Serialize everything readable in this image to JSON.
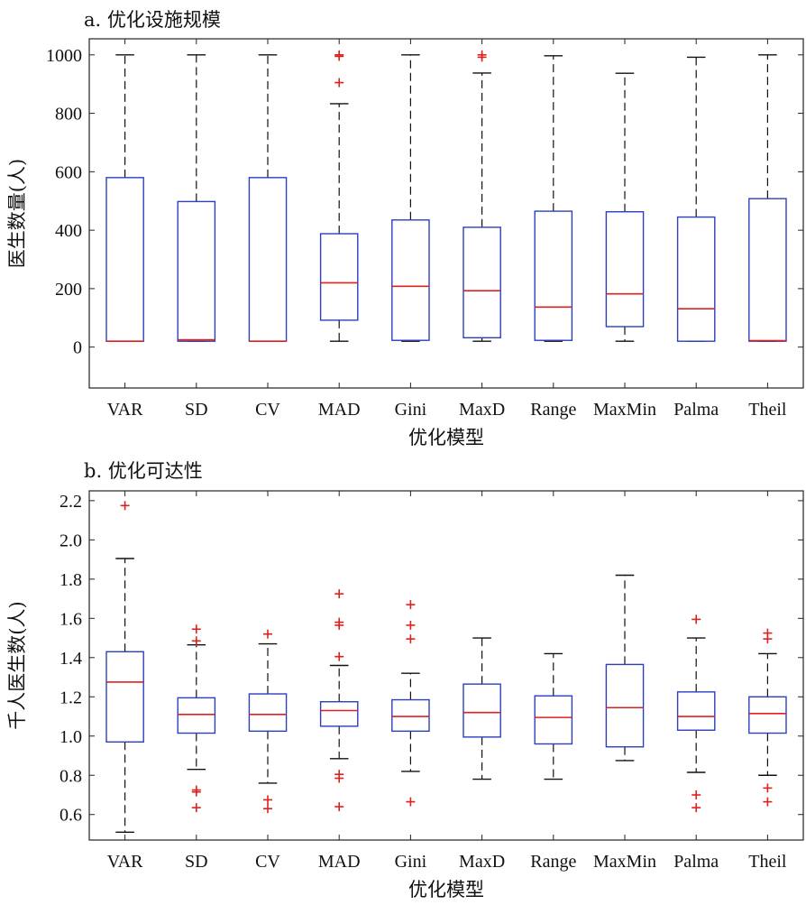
{
  "chart_data": [
    {
      "type": "box",
      "title": "a. 优化设施规模",
      "xlabel": "优化模型",
      "ylabel": "医生数量(人)",
      "ylim": [
        -140,
        1055
      ],
      "yticks": [
        0,
        200,
        400,
        600,
        800,
        1000
      ],
      "ytick_labels": [
        "0",
        "200",
        "400",
        "600",
        "800",
        "1000"
      ],
      "categories": [
        "VAR",
        "SD",
        "CV",
        "MAD",
        "Gini",
        "MaxD",
        "Range",
        "MaxMin",
        "Palma",
        "Theil"
      ],
      "boxes": [
        {
          "category": "VAR",
          "whisker_low": 20,
          "q1": 20,
          "median": 20,
          "q3": 580,
          "whisker_high": 1000,
          "outliers": []
        },
        {
          "category": "SD",
          "whisker_low": 20,
          "q1": 20,
          "median": 25,
          "q3": 498,
          "whisker_high": 1000,
          "outliers": []
        },
        {
          "category": "CV",
          "whisker_low": 20,
          "q1": 20,
          "median": 20,
          "q3": 580,
          "whisker_high": 1000,
          "outliers": []
        },
        {
          "category": "MAD",
          "whisker_low": 20,
          "q1": 92,
          "median": 220,
          "q3": 388,
          "whisker_high": 833,
          "outliers": [
            905,
            995,
            1000
          ]
        },
        {
          "category": "Gini",
          "whisker_low": 20,
          "q1": 23,
          "median": 208,
          "q3": 435,
          "whisker_high": 1000,
          "outliers": []
        },
        {
          "category": "MaxD",
          "whisker_low": 20,
          "q1": 32,
          "median": 193,
          "q3": 410,
          "whisker_high": 938,
          "outliers": [
            992,
            1000
          ]
        },
        {
          "category": "Range",
          "whisker_low": 20,
          "q1": 23,
          "median": 137,
          "q3": 465,
          "whisker_high": 997,
          "outliers": []
        },
        {
          "category": "MaxMin",
          "whisker_low": 20,
          "q1": 70,
          "median": 182,
          "q3": 463,
          "whisker_high": 937,
          "outliers": []
        },
        {
          "category": "Palma",
          "whisker_low": 20,
          "q1": 20,
          "median": 131,
          "q3": 445,
          "whisker_high": 992,
          "outliers": []
        },
        {
          "category": "Theil",
          "whisker_low": 20,
          "q1": 20,
          "median": 22,
          "q3": 508,
          "whisker_high": 1000,
          "outliers": []
        }
      ],
      "colors": {
        "box": "#2b3fc0",
        "median": "#e0201e",
        "whisker": "#111111",
        "outlier": "#e0201e"
      },
      "grid": false
    },
    {
      "type": "box",
      "title": "b. 优化可达性",
      "xlabel": "优化模型",
      "ylabel": "千人医生数(人)",
      "ylim": [
        0.47,
        2.25
      ],
      "yticks": [
        0.6,
        0.8,
        1.0,
        1.2,
        1.4,
        1.6,
        1.8,
        2.0,
        2.2
      ],
      "ytick_labels": [
        "0.6",
        "0.8",
        "1.0",
        "1.2",
        "1.4",
        "1.6",
        "1.8",
        "2.0",
        "2.2"
      ],
      "categories": [
        "VAR",
        "SD",
        "CV",
        "MAD",
        "Gini",
        "MaxD",
        "Range",
        "MaxMin",
        "Palma",
        "Theil"
      ],
      "boxes": [
        {
          "category": "VAR",
          "whisker_low": 0.51,
          "q1": 0.97,
          "median": 1.275,
          "q3": 1.43,
          "whisker_high": 1.905,
          "outliers": [
            2.175
          ]
        },
        {
          "category": "SD",
          "whisker_low": 0.83,
          "q1": 1.015,
          "median": 1.11,
          "q3": 1.195,
          "whisker_high": 1.465,
          "outliers": [
            0.635,
            0.715,
            0.725,
            1.485,
            1.545
          ]
        },
        {
          "category": "CV",
          "whisker_low": 0.76,
          "q1": 1.025,
          "median": 1.11,
          "q3": 1.215,
          "whisker_high": 1.47,
          "outliers": [
            0.63,
            0.675,
            1.52
          ]
        },
        {
          "category": "MAD",
          "whisker_low": 0.885,
          "q1": 1.05,
          "median": 1.13,
          "q3": 1.175,
          "whisker_high": 1.36,
          "outliers": [
            0.64,
            0.785,
            0.805,
            1.405,
            1.565,
            1.58,
            1.725
          ]
        },
        {
          "category": "Gini",
          "whisker_low": 0.82,
          "q1": 1.025,
          "median": 1.1,
          "q3": 1.185,
          "whisker_high": 1.32,
          "outliers": [
            0.665,
            1.495,
            1.565,
            1.67
          ]
        },
        {
          "category": "MaxD",
          "whisker_low": 0.78,
          "q1": 0.995,
          "median": 1.12,
          "q3": 1.265,
          "whisker_high": 1.5,
          "outliers": []
        },
        {
          "category": "Range",
          "whisker_low": 0.78,
          "q1": 0.96,
          "median": 1.095,
          "q3": 1.205,
          "whisker_high": 1.42,
          "outliers": []
        },
        {
          "category": "MaxMin",
          "whisker_low": 0.875,
          "q1": 0.945,
          "median": 1.145,
          "q3": 1.365,
          "whisker_high": 1.82,
          "outliers": []
        },
        {
          "category": "Palma",
          "whisker_low": 0.815,
          "q1": 1.03,
          "median": 1.1,
          "q3": 1.225,
          "whisker_high": 1.5,
          "outliers": [
            0.635,
            0.7,
            1.595
          ]
        },
        {
          "category": "Theil",
          "whisker_low": 0.8,
          "q1": 1.015,
          "median": 1.115,
          "q3": 1.2,
          "whisker_high": 1.42,
          "outliers": [
            0.665,
            0.735,
            1.495,
            1.525
          ]
        }
      ],
      "colors": {
        "box": "#2b3fc0",
        "median": "#e0201e",
        "whisker": "#111111",
        "outlier": "#e0201e"
      },
      "grid": false
    }
  ]
}
